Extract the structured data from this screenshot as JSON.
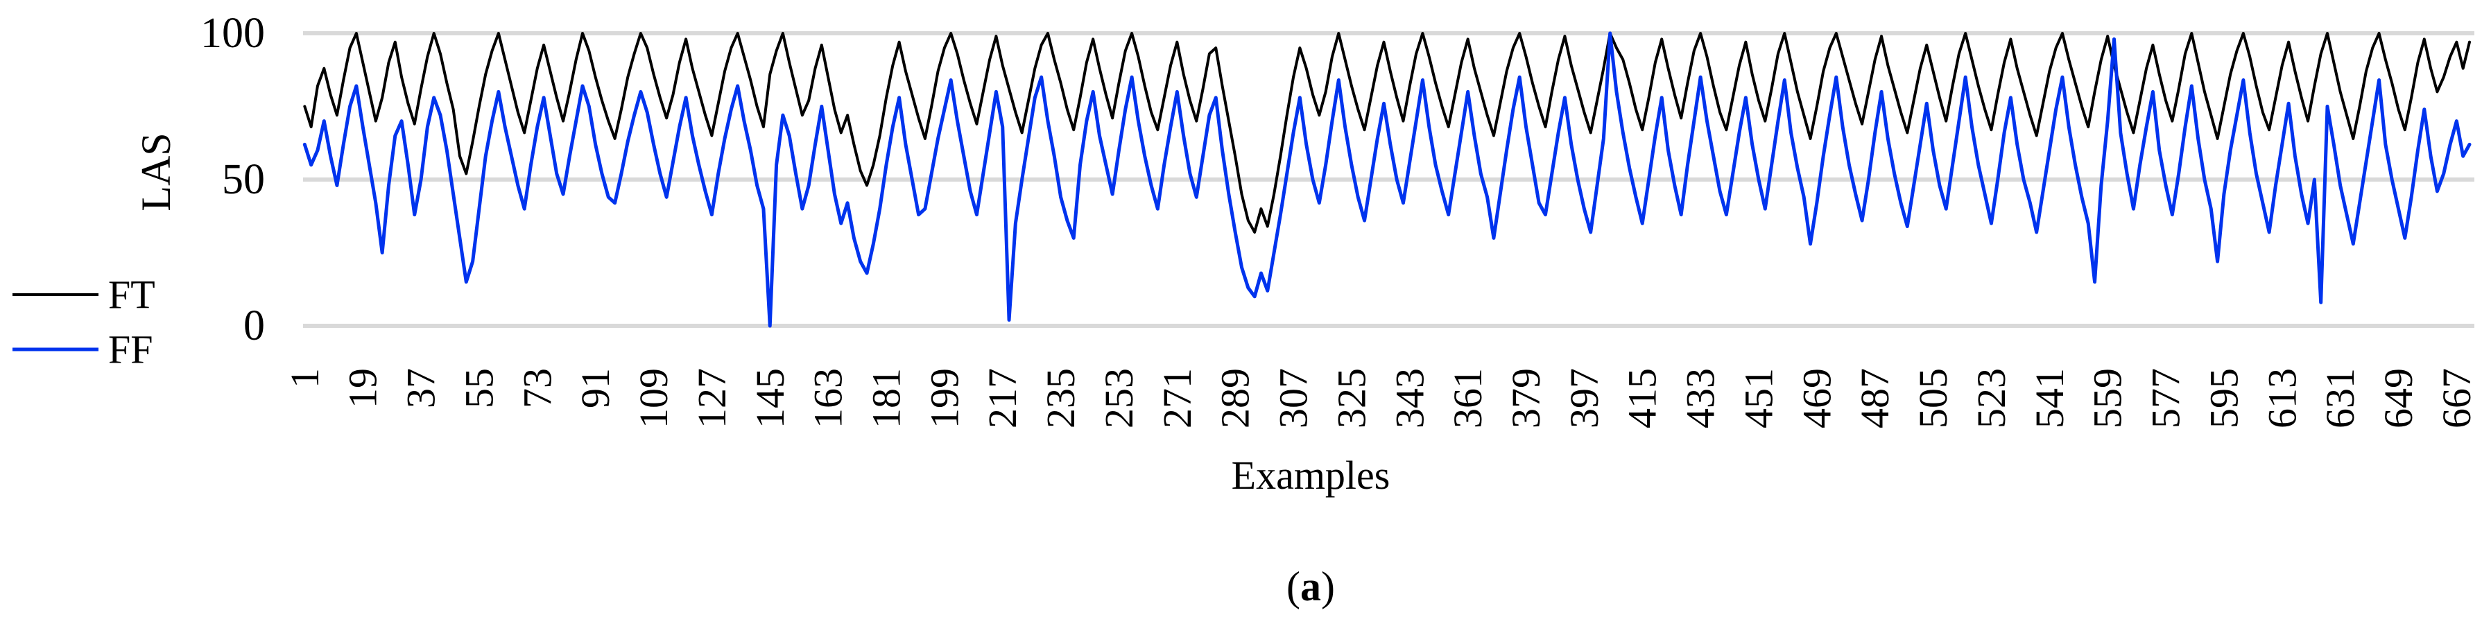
{
  "figure": {
    "caption": "(a)",
    "background": "#ffffff"
  },
  "chart_data": {
    "type": "line",
    "title": "",
    "xlabel": "Examples",
    "ylabel": "LAS",
    "grid": true,
    "grid_color": "#d9d9d9",
    "legend_position": "left-middle",
    "x_axis": {
      "label": "Examples",
      "count": 672,
      "start": 1,
      "step": 2,
      "ticks": [
        1,
        19,
        37,
        55,
        73,
        91,
        109,
        127,
        145,
        163,
        181,
        199,
        217,
        235,
        253,
        271,
        289,
        307,
        325,
        343,
        361,
        379,
        397,
        415,
        433,
        451,
        469,
        487,
        505,
        523,
        541,
        559,
        577,
        595,
        613,
        631,
        649,
        667
      ]
    },
    "y_axis": {
      "label": "LAS",
      "min": 0,
      "max": 100,
      "ticks": [
        100,
        50,
        0
      ]
    },
    "series": [
      {
        "name": "FT",
        "color": "#000000",
        "width": 4,
        "values": [
          75,
          68,
          82,
          88,
          79,
          72,
          84,
          95,
          100,
          90,
          80,
          70,
          78,
          90,
          97,
          85,
          76,
          69,
          81,
          92,
          100,
          93,
          83,
          74,
          58,
          52,
          63,
          75,
          86,
          94,
          100,
          91,
          82,
          73,
          66,
          77,
          88,
          96,
          87,
          78,
          70,
          80,
          91,
          100,
          94,
          85,
          77,
          70,
          64,
          74,
          85,
          93,
          100,
          95,
          86,
          78,
          71,
          79,
          90,
          98,
          88,
          80,
          72,
          65,
          76,
          87,
          95,
          100,
          92,
          84,
          75,
          68,
          86,
          94,
          100,
          90,
          81,
          72,
          77,
          88,
          96,
          85,
          74,
          66,
          72,
          62,
          53,
          48,
          55,
          65,
          78,
          89,
          97,
          87,
          79,
          71,
          64,
          75,
          87,
          95,
          100,
          93,
          84,
          76,
          69,
          80,
          91,
          99,
          89,
          81,
          73,
          66,
          77,
          88,
          96,
          100,
          91,
          83,
          74,
          67,
          78,
          90,
          98,
          88,
          79,
          71,
          83,
          94,
          100,
          92,
          82,
          73,
          67,
          78,
          89,
          97,
          86,
          77,
          70,
          81,
          93,
          95,
          82,
          70,
          58,
          45,
          36,
          32,
          40,
          34,
          45,
          58,
          72,
          85,
          95,
          88,
          79,
          72,
          80,
          92,
          100,
          91,
          82,
          74,
          67,
          78,
          89,
          97,
          87,
          78,
          70,
          82,
          93,
          100,
          92,
          83,
          75,
          68,
          79,
          90,
          98,
          88,
          80,
          72,
          65,
          76,
          87,
          95,
          100,
          92,
          83,
          75,
          68,
          80,
          91,
          99,
          89,
          81,
          73,
          66,
          77,
          88,
          100,
          95,
          91,
          83,
          74,
          67,
          78,
          90,
          98,
          88,
          79,
          71,
          83,
          94,
          100,
          92,
          82,
          73,
          67,
          78,
          89,
          97,
          86,
          77,
          70,
          81,
          93,
          100,
          90,
          80,
          72,
          64,
          75,
          87,
          95,
          100,
          92,
          84,
          76,
          69,
          80,
          91,
          99,
          89,
          81,
          73,
          66,
          77,
          88,
          96,
          87,
          78,
          70,
          82,
          93,
          100,
          91,
          82,
          74,
          67,
          79,
          90,
          98,
          88,
          80,
          72,
          65,
          76,
          87,
          95,
          100,
          91,
          83,
          75,
          68,
          80,
          91,
          99,
          89,
          81,
          73,
          66,
          77,
          88,
          96,
          86,
          77,
          70,
          81,
          93,
          100,
          90,
          80,
          72,
          64,
          75,
          86,
          94,
          100,
          92,
          82,
          73,
          67,
          78,
          89,
          97,
          87,
          78,
          70,
          82,
          93,
          100,
          90,
          80,
          72,
          64,
          75,
          87,
          95,
          100,
          91,
          83,
          74,
          67,
          78,
          90,
          98,
          88,
          80,
          85,
          92,
          97,
          88,
          97
        ]
      },
      {
        "name": "FF",
        "color": "#0033ee",
        "width": 5,
        "values": [
          62,
          55,
          60,
          70,
          58,
          48,
          62,
          75,
          82,
          68,
          55,
          42,
          25,
          48,
          65,
          70,
          55,
          38,
          50,
          68,
          78,
          72,
          60,
          45,
          30,
          15,
          22,
          40,
          58,
          70,
          80,
          68,
          58,
          48,
          40,
          55,
          68,
          78,
          65,
          52,
          45,
          58,
          70,
          82,
          75,
          62,
          52,
          44,
          42,
          52,
          63,
          72,
          80,
          73,
          62,
          52,
          44,
          56,
          68,
          78,
          65,
          55,
          46,
          38,
          52,
          64,
          74,
          82,
          70,
          60,
          48,
          40,
          0,
          55,
          72,
          65,
          52,
          40,
          48,
          62,
          75,
          60,
          45,
          35,
          42,
          30,
          22,
          18,
          28,
          40,
          55,
          68,
          78,
          62,
          50,
          38,
          40,
          52,
          64,
          74,
          84,
          70,
          58,
          46,
          38,
          52,
          66,
          80,
          68,
          2,
          35,
          50,
          64,
          78,
          85,
          70,
          58,
          44,
          36,
          30,
          55,
          70,
          80,
          65,
          55,
          45,
          60,
          74,
          85,
          70,
          58,
          48,
          40,
          55,
          68,
          80,
          65,
          52,
          44,
          58,
          72,
          78,
          60,
          45,
          32,
          20,
          13,
          10,
          18,
          12,
          25,
          38,
          52,
          66,
          78,
          62,
          50,
          42,
          55,
          70,
          84,
          68,
          55,
          44,
          36,
          50,
          64,
          76,
          62,
          50,
          42,
          56,
          70,
          84,
          68,
          55,
          46,
          38,
          52,
          66,
          80,
          65,
          52,
          44,
          30,
          45,
          60,
          74,
          85,
          68,
          55,
          42,
          38,
          52,
          66,
          78,
          62,
          50,
          40,
          32,
          48,
          64,
          100,
          80,
          66,
          54,
          44,
          35,
          50,
          65,
          78,
          60,
          48,
          38,
          55,
          70,
          85,
          70,
          58,
          46,
          38,
          52,
          66,
          78,
          62,
          50,
          40,
          55,
          70,
          84,
          66,
          54,
          44,
          28,
          42,
          58,
          72,
          85,
          68,
          55,
          45,
          36,
          50,
          66,
          80,
          64,
          52,
          42,
          34,
          48,
          62,
          76,
          60,
          48,
          40,
          55,
          70,
          85,
          68,
          55,
          45,
          35,
          50,
          66,
          78,
          62,
          50,
          42,
          32,
          46,
          60,
          74,
          85,
          68,
          55,
          44,
          35,
          15,
          48,
          70,
          98,
          66,
          52,
          40,
          55,
          68,
          80,
          60,
          48,
          38,
          52,
          68,
          82,
          64,
          50,
          40,
          22,
          45,
          60,
          72,
          84,
          66,
          52,
          42,
          32,
          48,
          62,
          76,
          58,
          45,
          35,
          50,
          8,
          75,
          62,
          48,
          38,
          28,
          42,
          56,
          70,
          84,
          62,
          50,
          40,
          30,
          44,
          60,
          74,
          58,
          46,
          52,
          62,
          70,
          58,
          62
        ]
      }
    ]
  }
}
